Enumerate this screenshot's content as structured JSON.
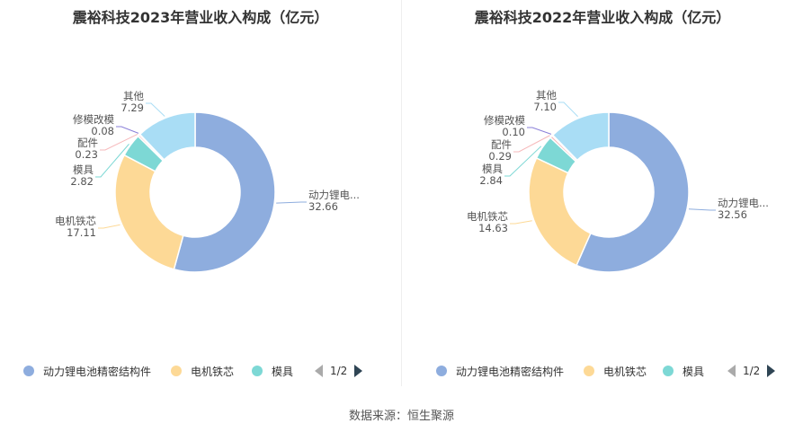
{
  "chart_data": [
    {
      "type": "pie",
      "variant": "donut",
      "title": "震裕科技2023年营业收入构成（亿元）",
      "categories": [
        "动力锂电池精密结构件",
        "电机铁芯",
        "模具",
        "配件",
        "修模改模",
        "其他"
      ],
      "values": [
        32.66,
        17.11,
        2.82,
        0.23,
        0.08,
        7.29
      ],
      "value_labels": [
        "32.66",
        "17.11",
        "2.82",
        "0.23",
        "0.08",
        "7.29"
      ],
      "label_names": [
        "动力锂电...",
        "电机铁芯",
        "模具",
        "配件",
        "修模改模",
        "其他"
      ],
      "colors": [
        "#8eadde",
        "#fdd996",
        "#7dd8d5",
        "#f6b9bb",
        "#8a7fd8",
        "#a9ddf5"
      ],
      "legend": {
        "position": "bottom",
        "items": [
          "动力锂电池精密结构件",
          "电机铁芯",
          "模具"
        ],
        "pager": "1/2"
      }
    },
    {
      "type": "pie",
      "variant": "donut",
      "title": "震裕科技2022年营业收入构成（亿元）",
      "categories": [
        "动力锂电池精密结构件",
        "电机铁芯",
        "模具",
        "配件",
        "修模改模",
        "其他"
      ],
      "values": [
        32.56,
        14.63,
        2.84,
        0.29,
        0.1,
        7.1
      ],
      "value_labels": [
        "32.56",
        "14.63",
        "2.84",
        "0.29",
        "0.10",
        "7.10"
      ],
      "label_names": [
        "动力锂电...",
        "电机铁芯",
        "模具",
        "配件",
        "修模改模",
        "其他"
      ],
      "colors": [
        "#8eadde",
        "#fdd996",
        "#7dd8d5",
        "#f6b9bb",
        "#8a7fd8",
        "#a9ddf5"
      ],
      "legend": {
        "position": "bottom",
        "items": [
          "动力锂电池精密结构件",
          "电机铁芯",
          "模具"
        ],
        "pager": "1/2"
      }
    }
  ],
  "footer": {
    "source": "数据来源：恒生聚源"
  }
}
